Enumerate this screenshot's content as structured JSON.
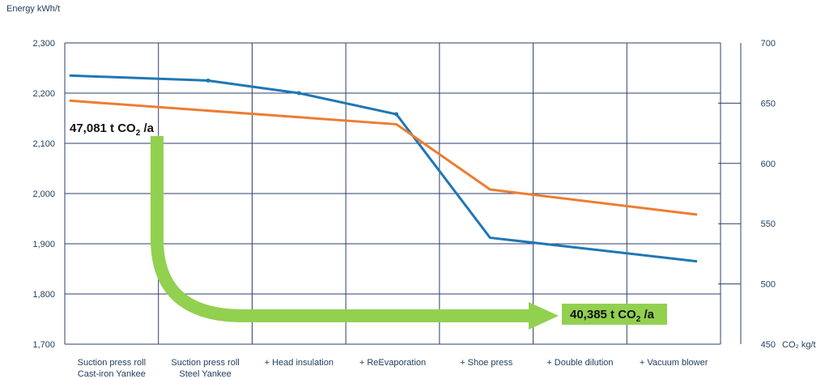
{
  "chart_data": {
    "type": "line",
    "categories": [
      [
        "Suction press roll",
        "Cast-iron Yankee"
      ],
      [
        "Suction press roll",
        "Steel Yankee"
      ],
      [
        "+ Head insulation"
      ],
      [
        "+ ReEvaporation"
      ],
      [
        "+ Shoe press"
      ],
      [
        "+ Double dilution"
      ],
      [
        "+ Vacuum blower"
      ]
    ],
    "y_left": {
      "label": "Energy kWh/t",
      "range": [
        1700,
        2300
      ],
      "ticks": [
        "1,700",
        "1,800",
        "1,900",
        "2,000",
        "2,100",
        "2,200",
        "2,300"
      ]
    },
    "y_right": {
      "label": "CO₂ kg/t",
      "range": [
        450,
        700
      ],
      "ticks": [
        "450",
        "500",
        "550",
        "600",
        "650",
        "700"
      ]
    },
    "series": [
      {
        "axis": "left",
        "color": "#1f77b4",
        "points": [
          {
            "pos": 0.05,
            "y": 2235
          },
          {
            "pos": 1.53,
            "y": 2225
          },
          {
            "pos": 2.5,
            "y": 2200
          },
          {
            "pos": 3.54,
            "y": 2158
          },
          {
            "pos": 4.54,
            "y": 1912
          },
          {
            "pos": 6.75,
            "y": 1865
          }
        ],
        "markers": [
          1,
          2,
          3
        ]
      },
      {
        "axis": "left",
        "color": "#ed7d31",
        "points": [
          {
            "pos": 0.05,
            "y": 2185
          },
          {
            "pos": 3.54,
            "y": 2138
          },
          {
            "pos": 4.54,
            "y": 2008
          },
          {
            "pos": 6.75,
            "y": 1958
          }
        ],
        "markers": []
      }
    ],
    "annotations": {
      "start": {
        "text": "47,081 t CO",
        "sub": "2",
        "suffix": " /a"
      },
      "end": {
        "text": "40,385 t CO",
        "sub": "2",
        "suffix": " /a"
      },
      "arrow_color": "#92d050",
      "end_box_color": "#92d050"
    },
    "grid": true
  }
}
